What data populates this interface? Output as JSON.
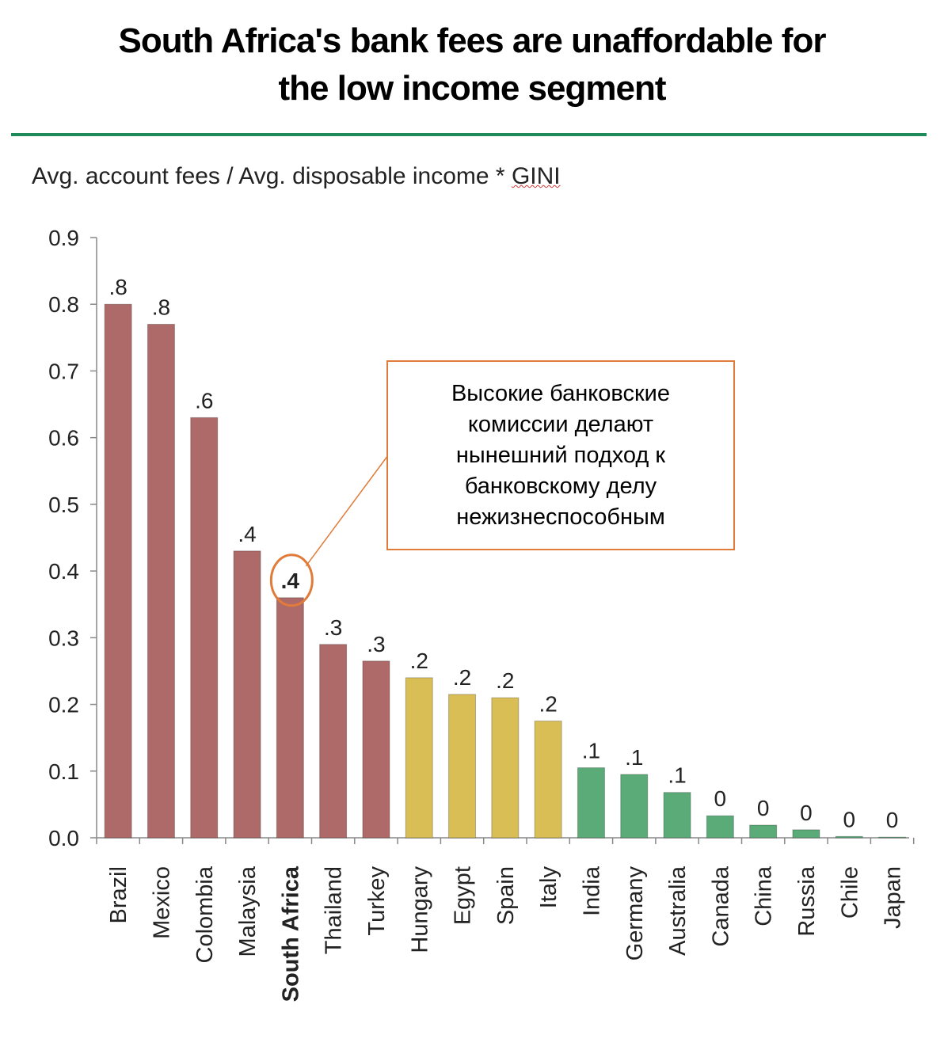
{
  "title": {
    "line1": "South Africa's bank fees are unaffordable for",
    "line2": "the low income segment"
  },
  "subtitle": {
    "prefix": "Avg. account fees / Avg. disposable income * ",
    "gini": "GINI"
  },
  "callout": {
    "lines": [
      "Высокие банковские",
      "комиссии делают",
      "нынешний подход к",
      "банковскому делу",
      "нежизнеспособным"
    ]
  },
  "colors": {
    "high": "#ad6a68",
    "mid": "#d9bd55",
    "low": "#5bab79",
    "accent": "#1f8a5a",
    "callout_border": "#e07b39"
  },
  "chart_data": {
    "type": "bar",
    "ylabel": "Avg. account fees / Avg. disposable income * GINI",
    "ylim": [
      0,
      0.9
    ],
    "yticks": [
      "0.0",
      "0.1",
      "0.2",
      "0.3",
      "0.4",
      "0.5",
      "0.6",
      "0.7",
      "0.8",
      "0.9"
    ],
    "highlight": "South Africa",
    "bars": [
      {
        "category": "Brazil",
        "value": 0.8,
        "label": ".8",
        "group": "high"
      },
      {
        "category": "Mexico",
        "value": 0.77,
        "label": ".8",
        "group": "high"
      },
      {
        "category": "Colombia",
        "value": 0.63,
        "label": ".6",
        "group": "high"
      },
      {
        "category": "Malaysia",
        "value": 0.43,
        "label": ".4",
        "group": "high"
      },
      {
        "category": "South Africa",
        "value": 0.36,
        "label": ".4",
        "group": "high"
      },
      {
        "category": "Thailand",
        "value": 0.29,
        "label": ".3",
        "group": "high"
      },
      {
        "category": "Turkey",
        "value": 0.265,
        "label": ".3",
        "group": "high"
      },
      {
        "category": "Hungary",
        "value": 0.24,
        "label": ".2",
        "group": "mid"
      },
      {
        "category": "Egypt",
        "value": 0.215,
        "label": ".2",
        "group": "mid"
      },
      {
        "category": "Spain",
        "value": 0.21,
        "label": ".2",
        "group": "mid"
      },
      {
        "category": "Italy",
        "value": 0.175,
        "label": ".2",
        "group": "mid"
      },
      {
        "category": "India",
        "value": 0.105,
        "label": ".1",
        "group": "low"
      },
      {
        "category": "Germany",
        "value": 0.095,
        "label": ".1",
        "group": "low"
      },
      {
        "category": "Australia",
        "value": 0.068,
        "label": ".1",
        "group": "low"
      },
      {
        "category": "Canada",
        "value": 0.033,
        "label": "0",
        "group": "low"
      },
      {
        "category": "China",
        "value": 0.019,
        "label": "0",
        "group": "low"
      },
      {
        "category": "Russia",
        "value": 0.012,
        "label": "0",
        "group": "low"
      },
      {
        "category": "Chile",
        "value": 0.002,
        "label": "0",
        "group": "low"
      },
      {
        "category": "Japan",
        "value": 0.001,
        "label": "0",
        "group": "low"
      }
    ]
  }
}
